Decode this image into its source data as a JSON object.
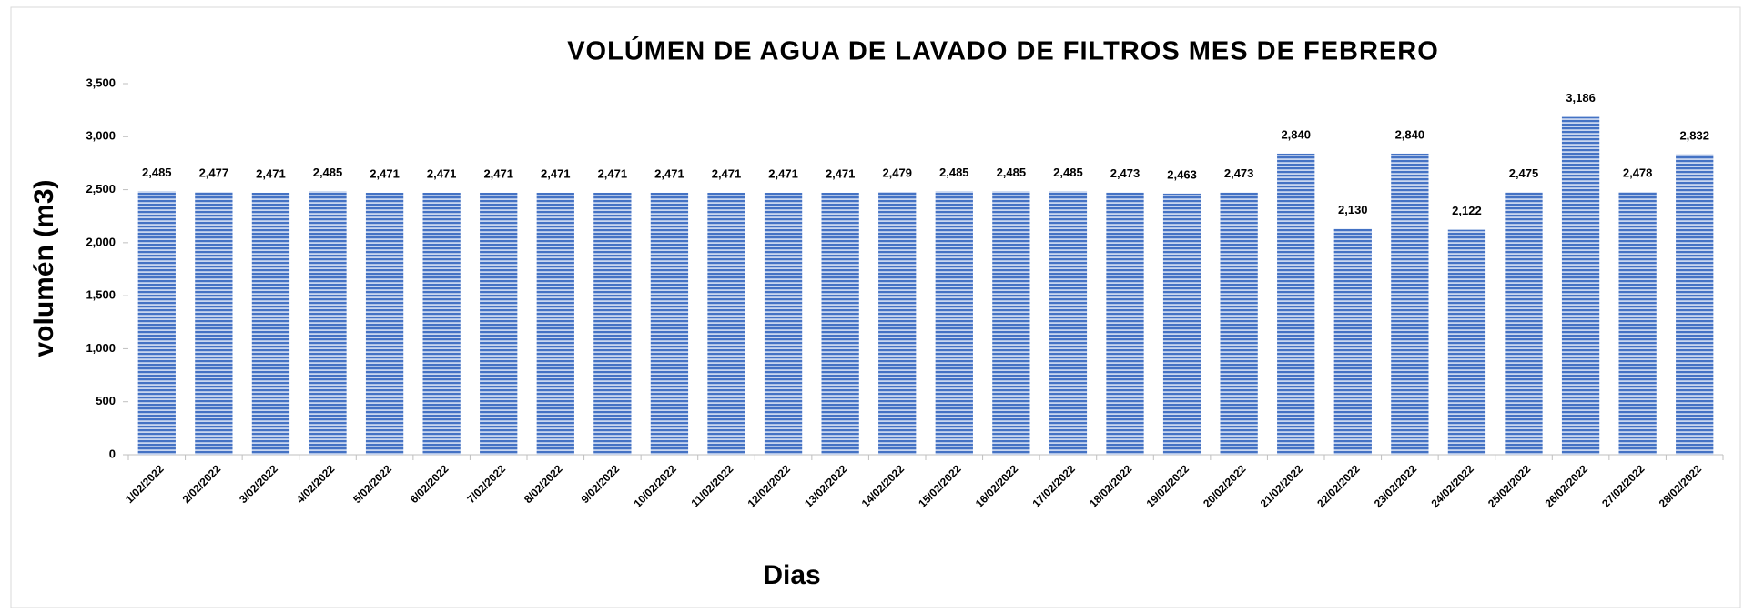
{
  "chart_data": {
    "type": "bar",
    "title": "VOLÚMEN DE AGUA DE LAVADO DE FILTROS MES DE FEBRERO",
    "x_label": "Dias",
    "y_label": "volumén (m3)",
    "categories": [
      "1/02/2022",
      "2/02/2022",
      "3/02/2022",
      "4/02/2022",
      "5/02/2022",
      "6/02/2022",
      "7/02/2022",
      "8/02/2022",
      "9/02/2022",
      "10/02/2022",
      "11/02/2022",
      "12/02/2022",
      "13/02/2022",
      "14/02/2022",
      "15/02/2022",
      "16/02/2022",
      "17/02/2022",
      "18/02/2022",
      "19/02/2022",
      "20/02/2022",
      "21/02/2022",
      "22/02/2022",
      "23/02/2022",
      "24/02/2022",
      "25/02/2022",
      "26/02/2022",
      "27/02/2022",
      "28/02/2022"
    ],
    "values": [
      2485,
      2477,
      2471,
      2485,
      2471,
      2471,
      2471,
      2471,
      2471,
      2471,
      2471,
      2471,
      2471,
      2479,
      2485,
      2485,
      2485,
      2473,
      2463,
      2473,
      2840,
      2130,
      2840,
      2122,
      2475,
      3186,
      2478,
      2832
    ],
    "value_labels": [
      "2,485",
      "2,477",
      "2,471",
      "2,485",
      "2,471",
      "2,471",
      "2,471",
      "2,471",
      "2,471",
      "2,471",
      "2,471",
      "2,471",
      "2,471",
      "2,479",
      "2,485",
      "2,485",
      "2,485",
      "2,473",
      "2,463",
      "2,473",
      "2,840",
      "2,130",
      "2,840",
      "2,122",
      "2,475",
      "3,186",
      "2,478",
      "2,832"
    ],
    "color": "#4472c4",
    "ylim": [
      0,
      3500
    ],
    "yticks": [
      0,
      500,
      {
        "value": 1000,
        "label": "1,000"
      },
      {
        "value": 1500,
        "label": "1,500"
      },
      {
        "value": 2000,
        "label": "2,000"
      },
      {
        "value": 2500,
        "label": "2,500"
      },
      {
        "value": 3000,
        "label": "3,000"
      },
      {
        "value": 3500,
        "label": "3,500"
      }
    ],
    "grid": false
  }
}
